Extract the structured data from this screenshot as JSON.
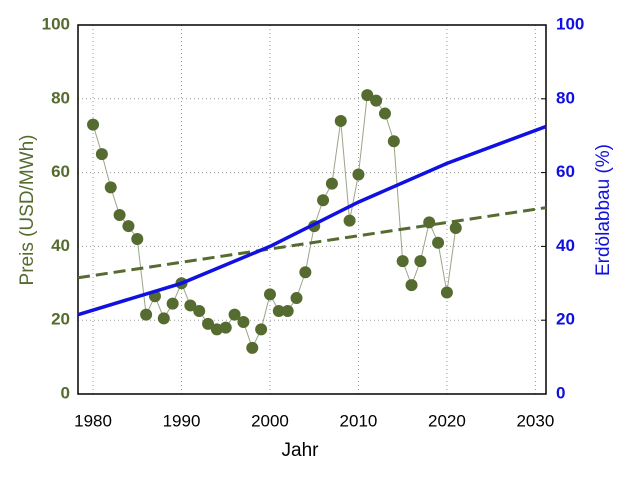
{
  "chart_data": {
    "type": "line",
    "xlabel": "Jahr",
    "ylabel": "Preis (USD/MWh)",
    "y2label": "Erdölabbau (%)",
    "xlim": [
      1978.3,
      2031.2
    ],
    "xticks": [
      1980,
      1990,
      2000,
      2010,
      2020,
      2030
    ],
    "ylim": [
      0,
      100
    ],
    "yticks": [
      0,
      20,
      40,
      60,
      80,
      100
    ],
    "y2lim": [
      0,
      100
    ],
    "y2ticks": [
      0,
      20,
      40,
      60,
      80,
      100
    ],
    "grid": true,
    "series": [
      {
        "style": "markers-line",
        "color": "#556b2f",
        "x": [
          1980,
          1981,
          1982,
          1983,
          1984,
          1985,
          1986,
          1987,
          1988,
          1989,
          1990,
          1991,
          1992,
          1993,
          1994,
          1995,
          1996,
          1997,
          1998,
          1999,
          2000,
          2001,
          2002,
          2003,
          2004,
          2005,
          2006,
          2007,
          2008,
          2009,
          2010,
          2011,
          2012,
          2013,
          2014,
          2015,
          2016,
          2017,
          2018,
          2019,
          2020,
          2021
        ],
        "values": [
          73,
          65,
          56,
          48.5,
          45.5,
          42,
          21.5,
          26.5,
          20.5,
          24.5,
          30,
          24,
          22.5,
          19,
          17.5,
          18,
          21.5,
          19.5,
          12.5,
          17.5,
          27,
          22.5,
          22.5,
          26,
          33,
          45.5,
          52.5,
          57,
          74,
          47,
          59.5,
          81,
          79.5,
          76,
          68.5,
          36,
          29.5,
          36,
          46.5,
          41,
          27.5,
          45
        ]
      },
      {
        "style": "dashed",
        "color": "#556b2f",
        "x": [
          1978.3,
          2031.2
        ],
        "values": [
          31.5,
          50.5
        ]
      },
      {
        "style": "solid",
        "color": "#1010e0",
        "axis": "y2",
        "x": [
          1978.3,
          1990,
          2000,
          2010,
          2020,
          2031.2
        ],
        "values": [
          21.5,
          30,
          40,
          52,
          62.5,
          72.5
        ]
      }
    ]
  }
}
